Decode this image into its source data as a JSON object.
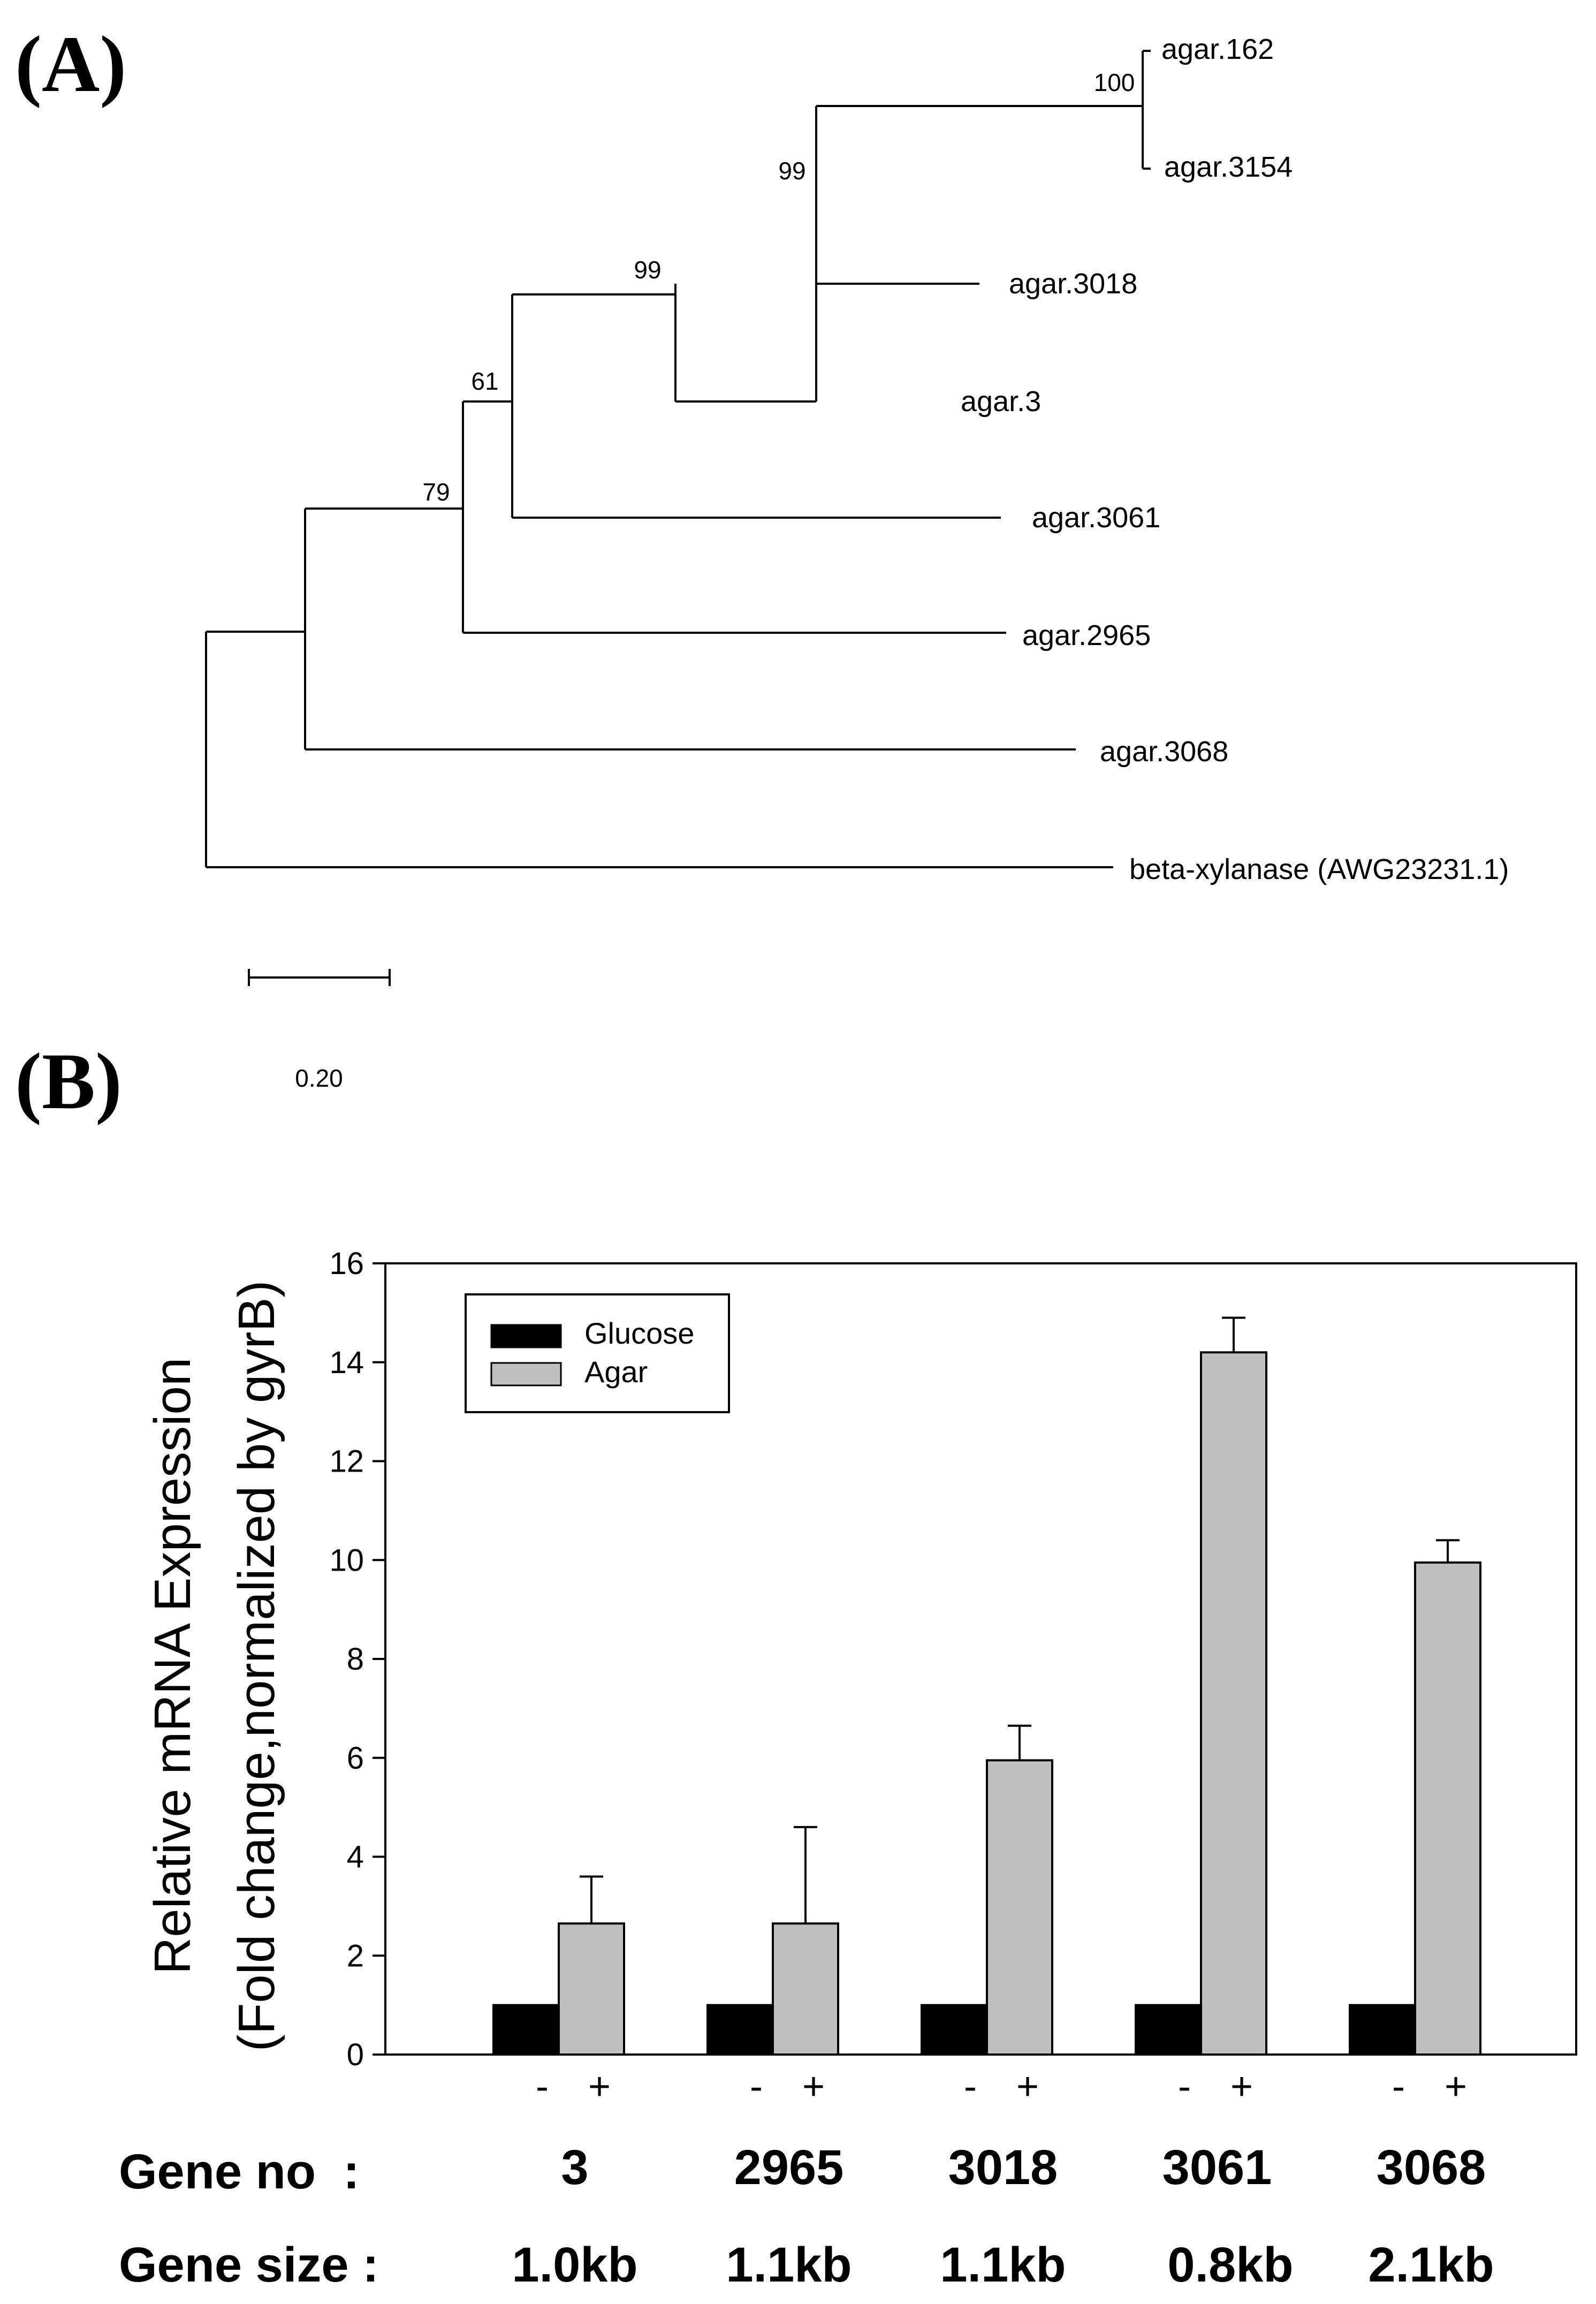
{
  "panels": {
    "a_label": "(A)",
    "b_label": "(B)"
  },
  "tree": {
    "leaves": [
      {
        "name": "agar.162"
      },
      {
        "name": "agar.3154"
      },
      {
        "name": "agar.3018"
      },
      {
        "name": "agar.3"
      },
      {
        "name": "agar.3061"
      },
      {
        "name": "agar.2965"
      },
      {
        "name": "agar.3068"
      },
      {
        "name": "beta-xylanase (AWG23231.1)"
      }
    ],
    "bootstrap": [
      "100",
      "99",
      "99",
      "61",
      "79"
    ],
    "scale_bar_label": "0.20",
    "scale_bar_value": 0.2
  },
  "chart_data": {
    "type": "bar",
    "ylabel_line1": "Relative mRNA Expression",
    "ylabel_line2": "(Fold change,normalized by gyrB)",
    "ylim": [
      0,
      16
    ],
    "yticks": [
      "0",
      "2",
      "4",
      "6",
      "8",
      "10",
      "12",
      "14",
      "16"
    ],
    "categories": [
      "3",
      "2965",
      "3018",
      "3061",
      "3068"
    ],
    "series": [
      {
        "name": "Glucose",
        "color": "#000000",
        "values": [
          1.0,
          1.0,
          1.0,
          1.0,
          1.0
        ],
        "errors": [
          0,
          0,
          0,
          0,
          0
        ]
      },
      {
        "name": "Agar",
        "color": "#c0c0c0",
        "values": [
          2.65,
          2.65,
          5.95,
          14.2,
          9.95
        ],
        "errors": [
          0.95,
          1.95,
          0.7,
          0.7,
          0.45
        ]
      }
    ],
    "condition_marks": [
      "-",
      "+"
    ],
    "legend_position": "top-left",
    "row_labels": {
      "gene_no": "Gene no  :",
      "gene_size": "Gene size :"
    },
    "gene_sizes": [
      "1.0kb",
      "1.1kb",
      "1.1kb",
      "0.8kb",
      "2.1kb"
    ]
  }
}
